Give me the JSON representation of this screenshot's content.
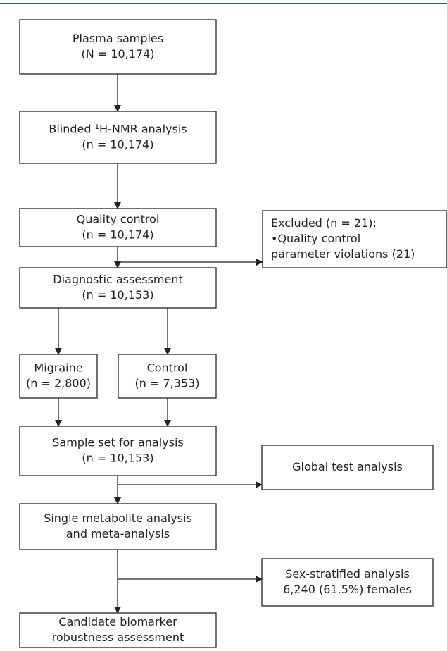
{
  "nodes": [
    {
      "lines": [
        "Plasma samples",
        "(N = 10,174)"
      ]
    },
    {
      "lines": [
        "Blinded ¹H-NMR analysis",
        "(n = 10,174)"
      ]
    },
    {
      "lines": [
        "Quality control",
        "(n = 10,174)"
      ]
    },
    {
      "lines": [
        "Excluded (n = 21):",
        "•Quality control",
        "parameter violations (21)"
      ]
    },
    {
      "lines": [
        "Diagnostic assessment",
        "(n = 10,153)"
      ]
    },
    {
      "lines": [
        "Migraine",
        "(n = 2,800)"
      ]
    },
    {
      "lines": [
        "Control",
        "(n = 7,353)"
      ]
    },
    {
      "lines": [
        "Sample set for analysis",
        "(n = 10,153)"
      ]
    },
    {
      "lines": [
        "Global test analysis"
      ]
    },
    {
      "lines": [
        "Single metabolite analysis",
        "and meta-analysis"
      ]
    },
    {
      "lines": [
        "Sex-stratified analysis",
        "6,240 (61.5%) females"
      ]
    },
    {
      "lines": [
        "Candidate biomarker",
        "robustness assessment"
      ]
    }
  ]
}
